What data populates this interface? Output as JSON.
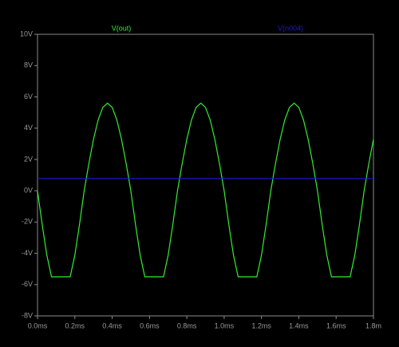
{
  "chart_data": {
    "type": "line",
    "x": [
      0,
      0.025,
      0.05,
      0.075,
      0.1,
      0.125,
      0.15,
      0.175,
      0.2,
      0.225,
      0.25,
      0.275,
      0.3,
      0.325,
      0.35,
      0.375,
      0.4,
      0.425,
      0.45,
      0.475,
      0.5,
      0.525,
      0.55,
      0.575,
      0.6,
      0.625,
      0.65,
      0.675,
      0.7,
      0.725,
      0.75,
      0.775,
      0.8,
      0.825,
      0.85,
      0.875,
      0.9,
      0.925,
      0.95,
      0.975,
      1,
      1.025,
      1.05,
      1.075,
      1.1,
      1.125,
      1.15,
      1.175,
      1.2,
      1.225,
      1.25,
      1.275,
      1.3,
      1.325,
      1.35,
      1.375,
      1.4,
      1.425,
      1.45,
      1.475,
      1.5,
      1.525,
      1.55,
      1.575,
      1.6,
      1.625,
      1.65,
      1.675,
      1.7,
      1.725,
      1.75,
      1.775,
      1.8
    ],
    "series": [
      {
        "name": "V(out)",
        "color": "#33ee33",
        "values": [
          0,
          -2.16,
          -4.12,
          -5.5,
          -5.5,
          -5.5,
          -5.5,
          -5.5,
          -4.12,
          -2.16,
          0,
          1.73,
          3.29,
          4.53,
          5.33,
          5.6,
          5.33,
          4.53,
          3.29,
          1.73,
          0,
          -2.16,
          -4.12,
          -5.5,
          -5.5,
          -5.5,
          -5.5,
          -5.5,
          -4.12,
          -2.16,
          0,
          1.73,
          3.29,
          4.53,
          5.33,
          5.6,
          5.33,
          4.53,
          3.29,
          1.73,
          0,
          -2.16,
          -4.12,
          -5.5,
          -5.5,
          -5.5,
          -5.5,
          -5.5,
          -4.12,
          -2.16,
          0,
          1.73,
          3.29,
          4.53,
          5.33,
          5.6,
          5.33,
          4.53,
          3.29,
          1.73,
          0,
          -2.16,
          -4.12,
          -5.5,
          -5.5,
          -5.5,
          -5.5,
          -5.5,
          -4.12,
          -2.16,
          0,
          1.73,
          3.29
        ]
      },
      {
        "name": "V(n004)",
        "color": "#1a1acc",
        "values": [
          0.78,
          0.78,
          0.78,
          0.78,
          0.78,
          0.78,
          0.78,
          0.78,
          0.78,
          0.78,
          0.78,
          0.78,
          0.78,
          0.78,
          0.78,
          0.78,
          0.78,
          0.78,
          0.78,
          0.78,
          0.78,
          0.78,
          0.78,
          0.78,
          0.78,
          0.78,
          0.78,
          0.78,
          0.78,
          0.78,
          0.78,
          0.78,
          0.78,
          0.78,
          0.78,
          0.78,
          0.78,
          0.78,
          0.78,
          0.78,
          0.78,
          0.78,
          0.78,
          0.78,
          0.78,
          0.78,
          0.78,
          0.78,
          0.78,
          0.78,
          0.78,
          0.78,
          0.78,
          0.78,
          0.78,
          0.78,
          0.78,
          0.78,
          0.78,
          0.78,
          0.78,
          0.78,
          0.78,
          0.78,
          0.78,
          0.78,
          0.78,
          0.78,
          0.78,
          0.78,
          0.78,
          0.78,
          0.78
        ]
      }
    ],
    "xlim": [
      0,
      1.8
    ],
    "xticks": [
      {
        "value": 0,
        "label": "0.0ms"
      },
      {
        "value": 0.2,
        "label": "0.2ms"
      },
      {
        "value": 0.4,
        "label": "0.4ms"
      },
      {
        "value": 0.6,
        "label": "0.6ms"
      },
      {
        "value": 0.8,
        "label": "0.8ms"
      },
      {
        "value": 1.0,
        "label": "1.0ms"
      },
      {
        "value": 1.2,
        "label": "1.2ms"
      },
      {
        "value": 1.4,
        "label": "1.4ms"
      },
      {
        "value": 1.6,
        "label": "1.6ms"
      },
      {
        "value": 1.8,
        "label": "1.8m"
      }
    ],
    "ylim": [
      -8,
      10
    ],
    "yticks": [
      {
        "value": 10,
        "label": "10V"
      },
      {
        "value": 8,
        "label": "8V"
      },
      {
        "value": 6,
        "label": "6V"
      },
      {
        "value": 4,
        "label": "4V"
      },
      {
        "value": 2,
        "label": "2V"
      },
      {
        "value": 0,
        "label": "0V"
      },
      {
        "value": -2,
        "label": "-2V"
      },
      {
        "value": -4,
        "label": "-4V"
      },
      {
        "value": -6,
        "label": "-6V"
      },
      {
        "value": -8,
        "label": "-8V"
      }
    ]
  }
}
